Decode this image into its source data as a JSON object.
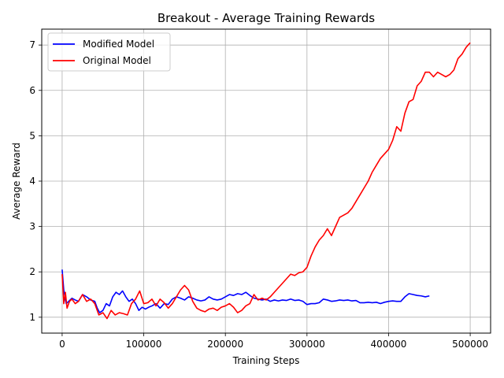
{
  "chart_data": {
    "type": "line",
    "title": "Breakout - Average Training Rewards",
    "xlabel": "Training Steps",
    "ylabel": "Average Reward",
    "xlim": [
      -25000,
      525000
    ],
    "ylim": [
      0.65,
      7.35
    ],
    "xticks": [
      0,
      100000,
      200000,
      300000,
      400000,
      500000
    ],
    "yticks": [
      1,
      2,
      3,
      4,
      5,
      6,
      7
    ],
    "grid": true,
    "legend": "top-left",
    "series": [
      {
        "name": "Modified Model",
        "color": "#0000ff",
        "x": [
          0,
          2000,
          5000,
          8000,
          12000,
          16000,
          20000,
          25000,
          30000,
          35000,
          40000,
          43000,
          46000,
          50000,
          54000,
          58000,
          62000,
          66000,
          70000,
          74000,
          78000,
          82000,
          86000,
          90000,
          94000,
          98000,
          102000,
          106000,
          110000,
          115000,
          120000,
          125000,
          130000,
          135000,
          140000,
          145000,
          150000,
          155000,
          160000,
          165000,
          170000,
          175000,
          180000,
          185000,
          190000,
          195000,
          200000,
          205000,
          210000,
          215000,
          220000,
          225000,
          230000,
          235000,
          240000,
          245000,
          250000,
          255000,
          260000,
          265000,
          270000,
          275000,
          280000,
          285000,
          290000,
          295000,
          300000,
          305000,
          310000,
          315000,
          320000,
          325000,
          330000,
          335000,
          340000,
          345000,
          350000,
          355000,
          360000,
          365000,
          370000,
          375000,
          380000,
          385000,
          390000,
          395000,
          400000,
          405000,
          410000,
          415000,
          420000,
          425000,
          430000,
          435000,
          440000,
          445000,
          450000
        ],
        "y": [
          2.05,
          1.6,
          1.3,
          1.35,
          1.42,
          1.38,
          1.35,
          1.5,
          1.45,
          1.38,
          1.35,
          1.2,
          1.1,
          1.15,
          1.3,
          1.25,
          1.45,
          1.55,
          1.5,
          1.58,
          1.45,
          1.35,
          1.4,
          1.3,
          1.15,
          1.22,
          1.18,
          1.22,
          1.25,
          1.3,
          1.2,
          1.3,
          1.28,
          1.4,
          1.45,
          1.42,
          1.38,
          1.45,
          1.42,
          1.38,
          1.36,
          1.38,
          1.45,
          1.4,
          1.38,
          1.4,
          1.45,
          1.5,
          1.48,
          1.52,
          1.5,
          1.55,
          1.48,
          1.42,
          1.4,
          1.38,
          1.4,
          1.35,
          1.38,
          1.36,
          1.38,
          1.37,
          1.4,
          1.37,
          1.38,
          1.35,
          1.28,
          1.3,
          1.3,
          1.32,
          1.4,
          1.38,
          1.35,
          1.36,
          1.38,
          1.37,
          1.38,
          1.36,
          1.37,
          1.32,
          1.32,
          1.33,
          1.32,
          1.33,
          1.3,
          1.33,
          1.35,
          1.36,
          1.35,
          1.35,
          1.45,
          1.52,
          1.5,
          1.48,
          1.47,
          1.45,
          1.47
        ]
      },
      {
        "name": "Original Model",
        "color": "#ff0000",
        "x": [
          0,
          2000,
          4000,
          6000,
          9000,
          12000,
          16000,
          20000,
          25000,
          30000,
          35000,
          40000,
          45000,
          50000,
          55000,
          60000,
          65000,
          70000,
          75000,
          80000,
          85000,
          90000,
          95000,
          100000,
          105000,
          110000,
          115000,
          120000,
          125000,
          130000,
          135000,
          140000,
          145000,
          150000,
          155000,
          160000,
          165000,
          170000,
          175000,
          180000,
          185000,
          190000,
          195000,
          200000,
          205000,
          210000,
          215000,
          220000,
          225000,
          230000,
          235000,
          240000,
          245000,
          250000,
          255000,
          260000,
          265000,
          270000,
          275000,
          280000,
          285000,
          290000,
          295000,
          300000,
          305000,
          310000,
          315000,
          320000,
          325000,
          330000,
          335000,
          340000,
          345000,
          350000,
          355000,
          360000,
          365000,
          370000,
          375000,
          380000,
          385000,
          390000,
          395000,
          400000,
          405000,
          410000,
          415000,
          420000,
          425000,
          430000,
          435000,
          440000,
          445000,
          450000,
          455000,
          460000,
          465000,
          470000,
          475000,
          480000,
          485000,
          490000,
          495000,
          500000
        ],
        "y": [
          1.95,
          1.3,
          1.55,
          1.2,
          1.35,
          1.4,
          1.3,
          1.35,
          1.5,
          1.35,
          1.4,
          1.3,
          1.05,
          1.1,
          0.97,
          1.15,
          1.05,
          1.1,
          1.08,
          1.05,
          1.3,
          1.4,
          1.58,
          1.3,
          1.32,
          1.4,
          1.25,
          1.4,
          1.32,
          1.2,
          1.3,
          1.45,
          1.6,
          1.7,
          1.6,
          1.35,
          1.2,
          1.15,
          1.12,
          1.18,
          1.2,
          1.15,
          1.22,
          1.25,
          1.3,
          1.22,
          1.1,
          1.15,
          1.25,
          1.3,
          1.5,
          1.38,
          1.42,
          1.38,
          1.45,
          1.55,
          1.65,
          1.75,
          1.85,
          1.95,
          1.92,
          1.98,
          2.0,
          2.1,
          2.35,
          2.55,
          2.7,
          2.8,
          2.95,
          2.8,
          3.0,
          3.2,
          3.25,
          3.3,
          3.4,
          3.55,
          3.7,
          3.85,
          4.0,
          4.2,
          4.35,
          4.5,
          4.6,
          4.7,
          4.9,
          5.2,
          5.1,
          5.5,
          5.75,
          5.8,
          6.1,
          6.2,
          6.4,
          6.4,
          6.3,
          6.4,
          6.35,
          6.3,
          6.35,
          6.45,
          6.7,
          6.8,
          6.95,
          7.05
        ]
      }
    ]
  }
}
